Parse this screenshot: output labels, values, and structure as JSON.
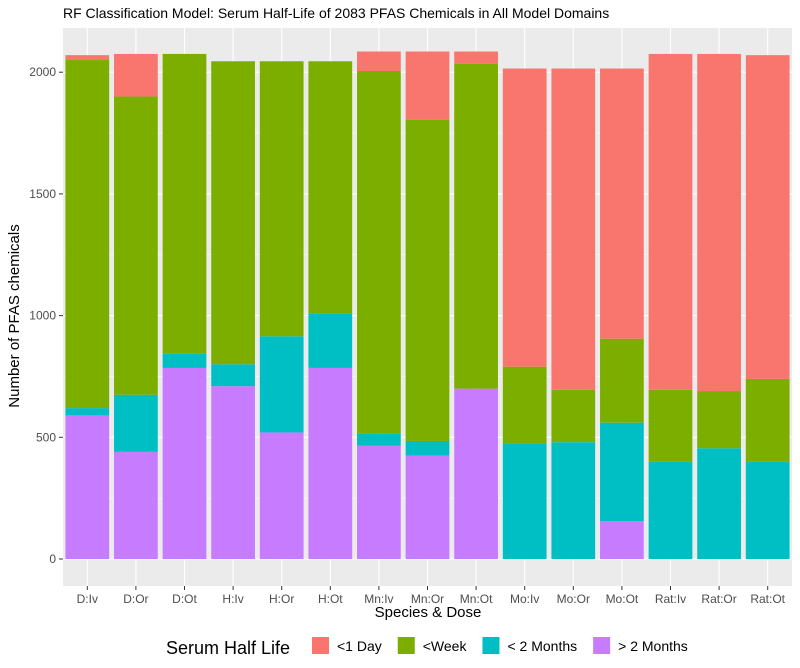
{
  "chart_data": {
    "type": "bar",
    "stacked": true,
    "title": "RF Classification Model: Serum Half-Life of 2083 PFAS Chemicals in All Model Domains",
    "xlabel": "Species & Dose",
    "ylabel": "Number of PFAS chemicals",
    "ylim": [
      0,
      2100
    ],
    "yticks": [
      0,
      500,
      1000,
      1500,
      2000
    ],
    "grid": true,
    "legend_position": "bottom",
    "legend_title": "Serum Half Life",
    "categories": [
      "D:Iv",
      "D:Or",
      "D:Ot",
      "H:Iv",
      "H:Or",
      "H:Ot",
      "Mn:Iv",
      "Mn:Or",
      "Mn:Ot",
      "Mo:Iv",
      "Mo:Or",
      "Mo:Ot",
      "Rat:Iv",
      "Rat:Or",
      "Rat:Ot"
    ],
    "series": [
      {
        "name": "> 2 Months",
        "color": "#C77CFF",
        "values": [
          590,
          440,
          785,
          710,
          520,
          785,
          465,
          425,
          700,
          0,
          0,
          155,
          0,
          0,
          0
        ]
      },
      {
        "name": "< 2 Months",
        "color": "#00BFC4",
        "values": [
          30,
          235,
          60,
          90,
          395,
          225,
          50,
          60,
          0,
          475,
          480,
          405,
          400,
          455,
          400
        ]
      },
      {
        "name": "<Week",
        "color": "#7CAE00",
        "values": [
          1430,
          1225,
          1230,
          1245,
          1130,
          1035,
          1490,
          1320,
          1335,
          315,
          215,
          345,
          295,
          235,
          340
        ]
      },
      {
        "name": "<1 Day",
        "color": "#F8766D",
        "values": [
          20,
          175,
          0,
          0,
          0,
          0,
          80,
          280,
          50,
          1225,
          1320,
          1110,
          1380,
          1385,
          1330
        ]
      }
    ],
    "legend_order": [
      "<1 Day",
      "<Week",
      "< 2 Months",
      "> 2 Months"
    ]
  }
}
